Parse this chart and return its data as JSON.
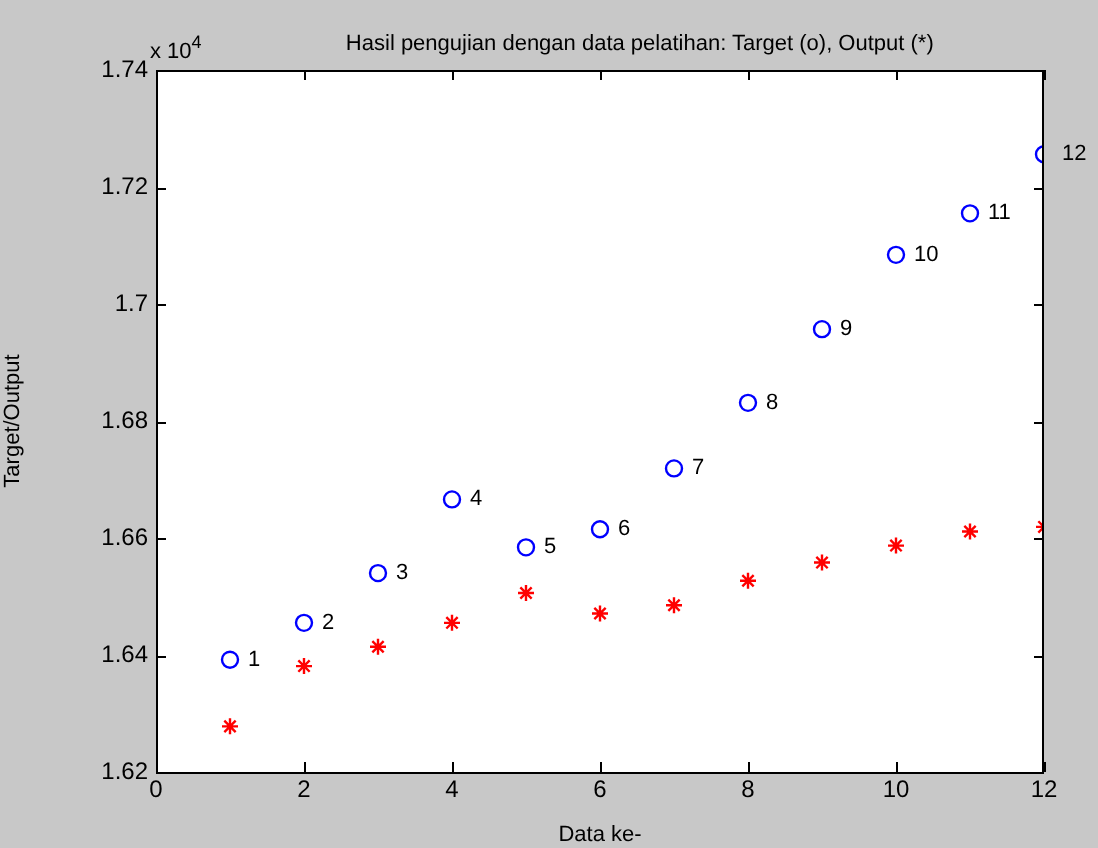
{
  "chart_data": {
    "type": "scatter",
    "title": "Hasil pengujian dengan data pelatihan: Target (o), Output (*)",
    "xlabel": "Data ke-",
    "ylabel": "Target/Output",
    "annotations": [
      "x 10$^{4}$",
      {
        "text": "1",
        "x": 1,
        "y": 1.6392
      },
      {
        "text": "2",
        "x": 2,
        "y": 1.6455
      },
      {
        "text": "3",
        "x": 3,
        "y": 1.654
      },
      {
        "text": "4",
        "x": 4,
        "y": 1.6666
      },
      {
        "text": "5",
        "x": 5,
        "y": 1.6584
      },
      {
        "text": "6",
        "x": 6,
        "y": 1.6615
      },
      {
        "text": "7",
        "x": 7,
        "y": 1.6719
      },
      {
        "text": "8",
        "x": 8,
        "y": 1.6831
      },
      {
        "text": "9",
        "x": 9,
        "y": 1.6957
      },
      {
        "text": "10",
        "x": 10,
        "y": 1.7084
      },
      {
        "text": "11",
        "x": 11,
        "y": 1.7155
      },
      {
        "text": "12",
        "x": 12,
        "y": 1.7256
      }
    ],
    "x": [
      1,
      2,
      3,
      4,
      5,
      6,
      7,
      8,
      9,
      10,
      11,
      12
    ],
    "series": [
      {
        "color": "#0000ff",
        "marker": "circle",
        "values": [
          1.6392,
          1.6455,
          1.654,
          1.6666,
          1.6584,
          1.6615,
          1.6719,
          1.6831,
          1.6957,
          1.7084,
          1.7155,
          1.7256
        ]
      },
      {
        "color": "#ff0000",
        "marker": "cross",
        "values": [
          1.6278,
          1.6381,
          1.6414,
          1.6455,
          1.6506,
          1.6471,
          1.6485,
          1.6527,
          1.6558,
          1.6587,
          1.6611,
          1.6619
        ]
      }
    ],
    "xlim": [
      0,
      12
    ],
    "xticks": [
      0,
      2,
      4,
      6,
      8,
      10,
      12
    ],
    "ylim": [
      1.62,
      1.74
    ],
    "yticks": [
      1.62,
      1.64,
      1.66,
      1.68,
      1.7,
      1.72,
      1.74
    ],
    "grid": false,
    "legend": false
  }
}
